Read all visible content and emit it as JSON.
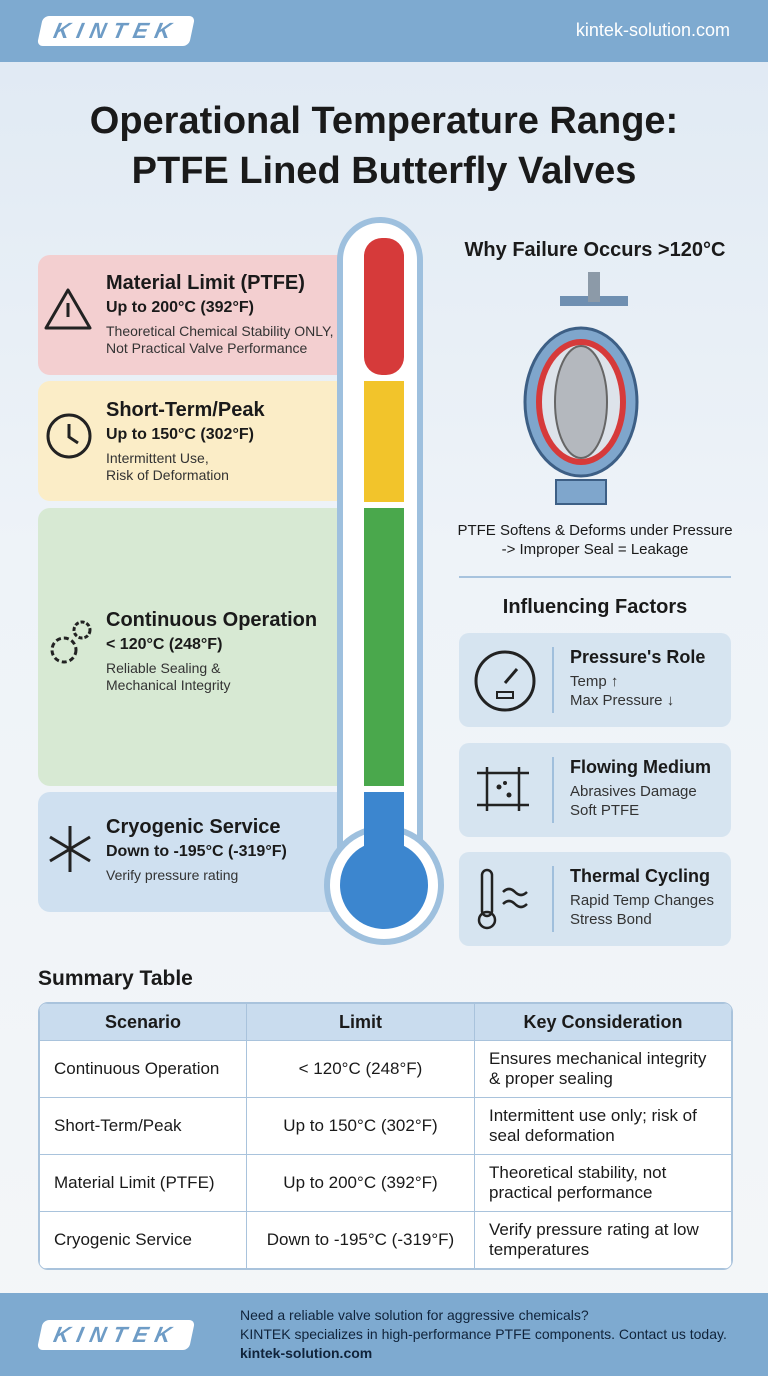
{
  "header": {
    "logo": "KINTEK",
    "url": "kintek-solution.com"
  },
  "title": [
    "Operational Temperature Range:",
    "PTFE Lined Butterfly Valves"
  ],
  "zones": [
    {
      "name": "Material Limit (PTFE)",
      "range": "Up to 200°C (392°F)",
      "note": [
        "Theoretical Chemical Stability ONLY,",
        "Not Practical Valve Performance"
      ]
    },
    {
      "name": "Short-Term/Peak",
      "range": "Up to 150°C (302°F)",
      "note": [
        "Intermittent Use,",
        "Risk of Deformation"
      ]
    },
    {
      "name": "Continuous Operation",
      "range": "< 120°C (248°F)",
      "note": [
        "Reliable Sealing &",
        "Mechanical Integrity"
      ]
    },
    {
      "name": "Cryogenic Service",
      "range": "Down to -195°C (-319°F)",
      "note": [
        "Verify pressure rating"
      ]
    }
  ],
  "failure": {
    "heading": "Why Failure Occurs >120°C",
    "caption": [
      "PTFE Softens & Deforms under Pressure",
      "-> Improper Seal = Leakage"
    ]
  },
  "factors": {
    "heading": "Influencing Factors",
    "items": [
      {
        "title": "Pressure's Role",
        "lines": [
          "Temp ↑",
          "Max Pressure ↓"
        ]
      },
      {
        "title": "Flowing Medium",
        "lines": [
          "Abrasives Damage",
          "Soft PTFE"
        ]
      },
      {
        "title": "Thermal Cycling",
        "lines": [
          "Rapid Temp Changes",
          "Stress Bond"
        ]
      }
    ]
  },
  "table": {
    "title": "Summary Table",
    "headers": [
      "Scenario",
      "Limit",
      "Key Consideration"
    ],
    "rows": [
      [
        "Continuous Operation",
        "< 120°C (248°F)",
        "Ensures mechanical integrity & proper sealing"
      ],
      [
        "Short-Term/Peak",
        "Up to 150°C (302°F)",
        "Intermittent use only; risk of seal deformation"
      ],
      [
        "Material Limit (PTFE)",
        "Up to 200°C (392°F)",
        "Theoretical stability, not practical performance"
      ],
      [
        "Cryogenic Service",
        "Down to -195°C (-319°F)",
        "Verify pressure rating at low temperatures"
      ]
    ]
  },
  "footer": {
    "logo": "KINTEK",
    "lines": [
      "Need a reliable valve solution for aggressive chemicals?",
      "KINTEK specializes in high-performance PTFE components. Contact us today."
    ],
    "url": "kintek-solution.com"
  }
}
